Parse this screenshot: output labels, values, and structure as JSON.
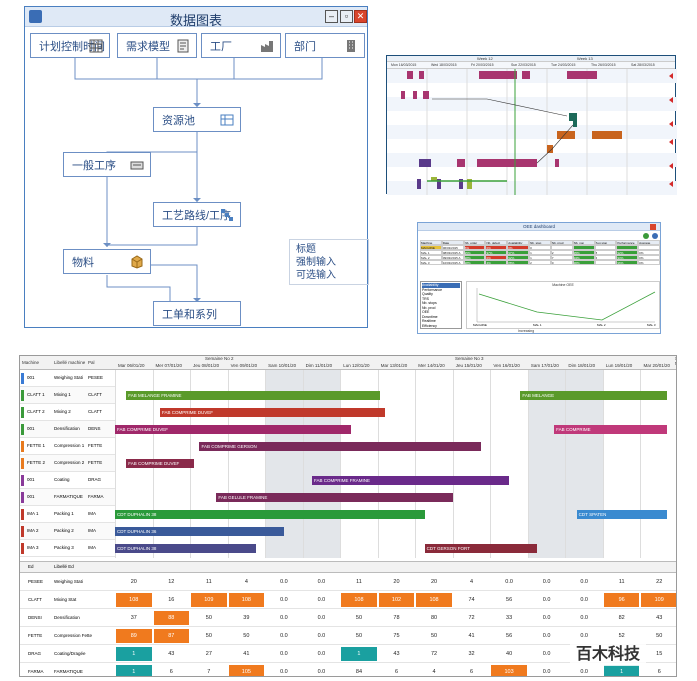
{
  "flow": {
    "title": "数据图表",
    "boxes": {
      "plan": "计划控制时间",
      "req": "需求模型",
      "factory": "工厂",
      "dept": "部门",
      "resource": "资源池",
      "general": "一般工序",
      "process": "工艺路线/工序",
      "material": "物料",
      "order": "工单和系列"
    },
    "legend": [
      "标题",
      "强制输入",
      "可选输入"
    ]
  },
  "gantt1": {
    "weeks": [
      "Week 12",
      "Week 13"
    ],
    "days": [
      "Mon 16/03/2015",
      "Wed 18/03/2015",
      "Fri 20/03/2015",
      "Sun 22/03/2015",
      "Tue 24/03/2015",
      "Thu 26/03/2015",
      "Sat 28/03/2015"
    ]
  },
  "dash": {
    "title": "OEE dashboard",
    "headers": [
      "Machine",
      "Date",
      "Nb. order",
      "Nb. defect",
      "Availability",
      "Nb. stop",
      "Nb. prod",
      "Nb. non",
      "Avg stop",
      "Performance",
      "Average"
    ],
    "rows": [
      [
        "MACHINE",
        "06/03/2015",
        "5%",
        "0%",
        "0%",
        "0",
        "",
        "",
        "",
        "",
        ""
      ],
      [
        "MAL 1",
        "08/03/2015 A",
        "95%",
        "97%",
        "97%",
        "1",
        "2",
        "95%",
        "8",
        "92%",
        "0%"
      ],
      [
        "MAL 2",
        "09/03/2015 A",
        "98%",
        "0%",
        "92%",
        "1",
        "7",
        "94%",
        "5",
        "93%",
        "0%"
      ],
      [
        "MAL 3",
        "10/03/2015 A",
        "98%",
        "4%",
        "88%",
        "2",
        "0",
        "96%",
        "",
        "96%",
        "0%"
      ]
    ],
    "list": [
      "Availability",
      "Performance",
      "Quality",
      "TRS",
      "Nb. stops",
      "Nb. prod",
      "OEE",
      "Downtime",
      "Realtime",
      "Efficiency"
    ],
    "chart_title": "Machine OEE",
    "xlabels": [
      "MACHINE",
      "MAL 1",
      "MAL 2",
      "MAL 3"
    ],
    "footer": "Increasing"
  },
  "gantt2": {
    "headers": [
      "Machine",
      "Libellé machine",
      "Pal"
    ],
    "weeks": [
      "Semaine No 2",
      "Semaine No 3",
      "Semaine No 4"
    ],
    "days": [
      "Mar 06/01/20",
      "Mer 07/01/20",
      "Jeu 08/01/20",
      "Ven 09/01/20",
      "Sam 10/01/20",
      "Dim 11/01/20",
      "Lun 12/01/20",
      "Mar 13/01/20",
      "Mer 14/01/20",
      "Jeu 15/01/20",
      "Ven 16/01/20",
      "Sam 17/01/20",
      "Dim 18/01/20",
      "Lun 19/01/20",
      "Mar 20/01/20"
    ],
    "rows": [
      {
        "id": "001",
        "name": "Weighing Stati",
        "code": "PESEE",
        "color": "#3a7bd5"
      },
      {
        "id": "CLATT 1",
        "name": "Mixing 1",
        "code": "CLATT",
        "color": "#3a9a3a"
      },
      {
        "id": "CLATT 2",
        "name": "Mixing 2",
        "code": "CLATT",
        "color": "#3a9a3a"
      },
      {
        "id": "001",
        "name": "Densification",
        "code": "DENS",
        "color": "#3a9a3a"
      },
      {
        "id": "FETTE 1",
        "name": "Compression 1",
        "code": "FETTE",
        "color": "#e87a1e"
      },
      {
        "id": "FETTE 2",
        "name": "Compression 2",
        "code": "FETTE",
        "color": "#e87a1e"
      },
      {
        "id": "001",
        "name": "Coating",
        "code": "DRAG",
        "color": "#8a3a9a"
      },
      {
        "id": "001",
        "name": "FARMATIQUE",
        "code": "FARMA",
        "color": "#8a3a9a"
      },
      {
        "id": "IMA 1",
        "name": "Packing 1",
        "code": "IMA",
        "color": "#c0392b"
      },
      {
        "id": "IMA 2",
        "name": "Packing 2",
        "code": "IMA",
        "color": "#c0392b"
      },
      {
        "id": "IMA 3",
        "name": "Packing 3",
        "code": "IMA",
        "color": "#c0392b"
      }
    ],
    "bars": [
      {
        "row": 1,
        "label": "FAB MELANGE FRA",
        "color": "#5a9a2a"
      },
      {
        "row": 1,
        "label": "FAB MELANGE FRAMINE",
        "color": "#5a9a2a"
      },
      {
        "row": 2,
        "label": "FAB COMPRIME DUVEF",
        "color": "#c0392b"
      },
      {
        "row": 3,
        "label": "FAB COMPRIME DUVEF",
        "color": "#a0286a"
      },
      {
        "row": 4,
        "label": "FAB COMPRIME GERSON",
        "color": "#7a2a5a"
      },
      {
        "row": 5,
        "label": "FAB COMPRIME DUVEF",
        "color": "#8a2a4a"
      },
      {
        "row": 6,
        "label": "FAB COMPRIME FRAMINE",
        "color": "#6a2a8a"
      },
      {
        "row": 7,
        "label": "FAB GELULE FRAMINE",
        "color": "#7a2a5a"
      },
      {
        "row": 8,
        "label": "CDT DUPHALIN 38",
        "color": "#2a9a3a"
      },
      {
        "row": 9,
        "label": "CDT DUPHALIN 36",
        "color": "#3a5a9a"
      },
      {
        "row": 10,
        "label": "CDT DUPHALIN 38",
        "color": "#4a4a8a"
      }
    ],
    "bar_extra": [
      "FAB COMPRIME",
      "FAB MELANGE",
      "CDT GERSON FORT",
      "CDT SPATEN"
    ],
    "table_headers": [
      "Ed",
      "Libellé Ed"
    ],
    "table": [
      {
        "code": "PESEE",
        "name": "Weighing Stati",
        "vals": [
          "20",
          "12",
          "11",
          "4",
          "0.0",
          "0.0",
          "11",
          "20",
          "20",
          "4",
          "0.0",
          "0.0",
          "0.0",
          "11",
          "22"
        ]
      },
      {
        "code": "CLATT",
        "name": "Mixing Stat",
        "vals": [
          "108",
          "16",
          "109",
          "108",
          "0.0",
          "0.0",
          "108",
          "102",
          "108",
          "74",
          "56",
          "0.0",
          "0.0",
          "96",
          "109"
        ]
      },
      {
        "code": "DENSI",
        "name": "Densification",
        "vals": [
          "37",
          "88",
          "50",
          "39",
          "0.0",
          "0.0",
          "50",
          "78",
          "80",
          "72",
          "33",
          "0.0",
          "0.0",
          "82",
          "43"
        ]
      },
      {
        "code": "FETTE",
        "name": "Compression Fette",
        "vals": [
          "89",
          "87",
          "50",
          "50",
          "0.0",
          "0.0",
          "50",
          "75",
          "50",
          "41",
          "56",
          "0.0",
          "0.0",
          "52",
          "50"
        ]
      },
      {
        "code": "DRAG",
        "name": "Coating/Dragée",
        "vals": [
          "1",
          "43",
          "27",
          "41",
          "0.0",
          "0.0",
          "1",
          "43",
          "72",
          "32",
          "40",
          "0.0",
          "0.0",
          "32",
          "15"
        ]
      },
      {
        "code": "FARMA",
        "name": "FARMATIQUE",
        "vals": [
          "1",
          "6",
          "7",
          "105",
          "0.0",
          "0.0",
          "84",
          "6",
          "4",
          "6",
          "103",
          "0.0",
          "0.0",
          "1",
          "6"
        ]
      }
    ]
  },
  "watermark": "百木科技"
}
